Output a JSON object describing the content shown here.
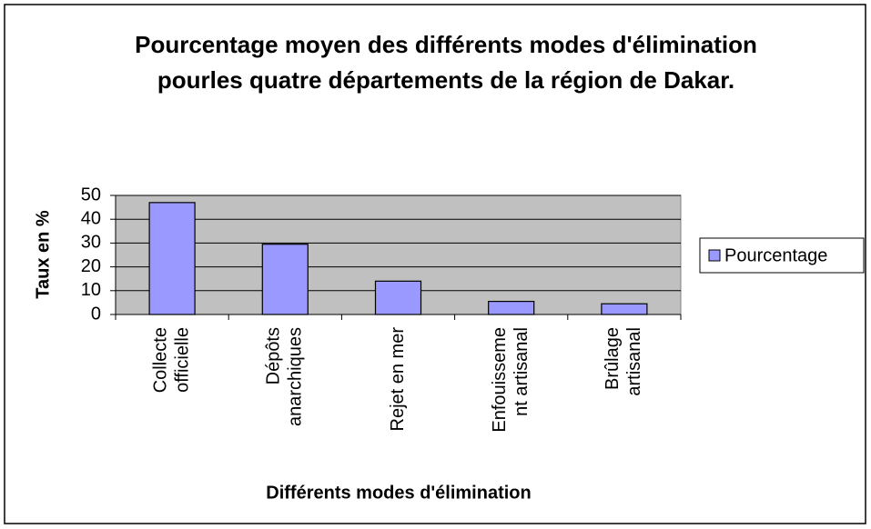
{
  "chart_data": {
    "type": "bar",
    "title": "Pourcentage moyen des différents modes d'élimination pourles quatre départements de la région de Dakar.",
    "xlabel": "Différents modes d'élimination",
    "ylabel": "Taux en %",
    "categories": [
      [
        "Collecte",
        "officielle"
      ],
      [
        "Dépôts",
        "anarchiques"
      ],
      [
        "Rejet en mer"
      ],
      [
        "Enfouisseme",
        "nt artisanal"
      ],
      [
        "Brûlage",
        "artisanal"
      ]
    ],
    "series": [
      {
        "name": "Pourcentage",
        "color": "#9999ff",
        "values": [
          47,
          29.5,
          14,
          5.5,
          4.5
        ]
      }
    ],
    "ylim": [
      0,
      50
    ],
    "yticks": [
      0,
      10,
      20,
      30,
      40,
      50
    ],
    "grid": true,
    "legend": "right"
  }
}
